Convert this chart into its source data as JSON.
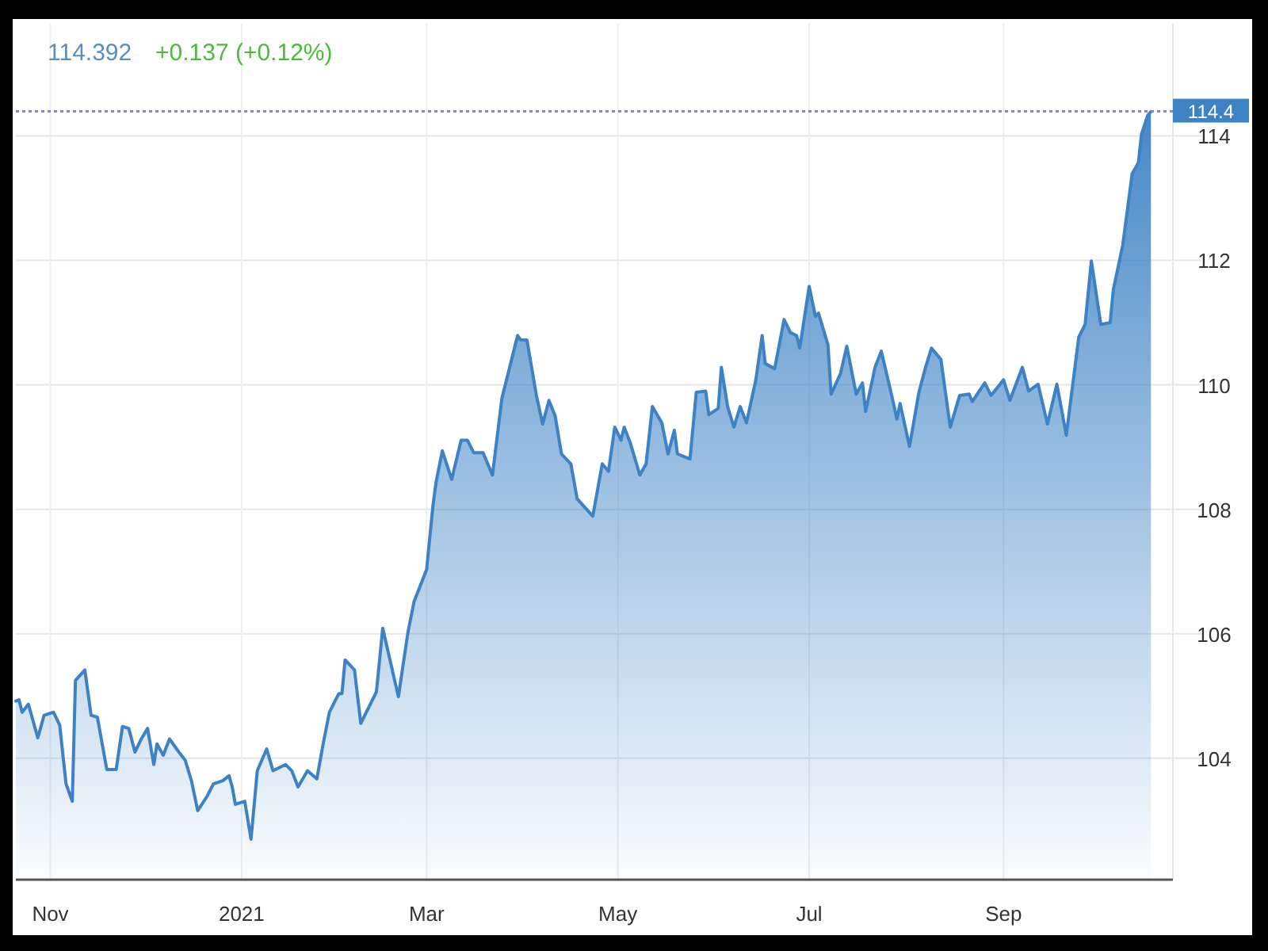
{
  "chart_data": {
    "type": "area",
    "title": "114.392",
    "subtitle": "+0.137 (+0.12%)",
    "x": [
      "2020-10-21",
      "2020-10-22",
      "2020-10-23",
      "2020-10-25",
      "2020-10-28",
      "2020-10-30",
      "2020-11-02",
      "2020-11-04",
      "2020-11-06",
      "2020-11-08",
      "2020-11-09",
      "2020-11-12",
      "2020-11-14",
      "2020-11-16",
      "2020-11-19",
      "2020-11-22",
      "2020-11-24",
      "2020-11-26",
      "2020-11-28",
      "2020-11-30",
      "2020-12-02",
      "2020-12-04",
      "2020-12-05",
      "2020-12-07",
      "2020-12-09",
      "2020-12-12",
      "2020-12-14",
      "2020-12-16",
      "2020-12-18",
      "2020-12-21",
      "2020-12-23",
      "2020-12-26",
      "2020-12-28",
      "2020-12-29",
      "2020-12-30",
      "2021-01-02",
      "2021-01-04",
      "2021-01-06",
      "2021-01-09",
      "2021-01-11",
      "2021-01-15",
      "2021-01-17",
      "2021-01-19",
      "2021-01-22",
      "2021-01-25",
      "2021-01-27",
      "2021-01-29",
      "2021-02-01",
      "2021-02-02",
      "2021-02-03",
      "2021-02-06",
      "2021-02-08",
      "2021-02-13",
      "2021-02-15",
      "2021-02-20",
      "2021-02-23",
      "2021-02-25",
      "2021-03-01",
      "2021-03-03",
      "2021-03-04",
      "2021-03-06",
      "2021-03-09",
      "2021-03-12",
      "2021-03-14",
      "2021-03-16",
      "2021-03-19",
      "2021-03-22",
      "2021-03-25",
      "2021-03-30",
      "2021-03-31",
      "2021-04-02",
      "2021-04-05",
      "2021-04-07",
      "2021-04-09",
      "2021-04-11",
      "2021-04-13",
      "2021-04-16",
      "2021-04-18",
      "2021-04-23",
      "2021-04-26",
      "2021-04-28",
      "2021-04-30",
      "2021-05-02",
      "2021-05-03",
      "2021-05-05",
      "2021-05-08",
      "2021-05-10",
      "2021-05-12",
      "2021-05-15",
      "2021-05-17",
      "2021-05-19",
      "2021-05-20",
      "2021-05-24",
      "2021-05-26",
      "2021-05-29",
      "2021-05-30",
      "2021-06-02",
      "2021-06-03",
      "2021-06-05",
      "2021-06-07",
      "2021-06-09",
      "2021-06-11",
      "2021-06-14",
      "2021-06-16",
      "2021-06-17",
      "2021-06-20",
      "2021-06-23",
      "2021-06-25",
      "2021-06-27",
      "2021-06-28",
      "2021-07-01",
      "2021-07-03",
      "2021-07-04",
      "2021-07-07",
      "2021-07-08",
      "2021-07-11",
      "2021-07-13",
      "2021-07-16",
      "2021-07-18",
      "2021-07-19",
      "2021-07-22",
      "2021-07-24",
      "2021-07-27",
      "2021-07-29",
      "2021-07-30",
      "2021-08-02",
      "2021-08-05",
      "2021-08-07",
      "2021-08-09",
      "2021-08-12",
      "2021-08-15",
      "2021-08-18",
      "2021-08-21",
      "2021-08-22",
      "2021-08-26",
      "2021-08-28",
      "2021-09-01",
      "2021-09-03",
      "2021-09-07",
      "2021-09-09",
      "2021-09-12",
      "2021-09-15",
      "2021-09-18",
      "2021-09-21",
      "2021-09-25",
      "2021-09-27",
      "2021-09-29",
      "2021-10-02",
      "2021-10-05",
      "2021-10-06",
      "2021-10-09",
      "2021-10-12",
      "2021-10-14",
      "2021-10-15",
      "2021-10-17",
      "2021-10-18"
    ],
    "series": [
      {
        "color": "#3d82c4",
        "values": [
          104.92,
          104.94,
          104.74,
          104.87,
          104.33,
          104.69,
          104.74,
          104.53,
          103.59,
          103.31,
          105.25,
          105.42,
          104.69,
          104.66,
          103.82,
          103.82,
          104.51,
          104.48,
          104.1,
          104.31,
          104.48,
          103.9,
          104.23,
          104.05,
          104.31,
          104.1,
          103.97,
          103.64,
          103.16,
          103.39,
          103.59,
          103.64,
          103.72,
          103.54,
          103.26,
          103.31,
          102.7,
          103.8,
          104.15,
          103.8,
          103.9,
          103.8,
          103.54,
          103.8,
          103.67,
          104.23,
          104.74,
          105.04,
          105.04,
          105.58,
          105.42,
          104.56,
          105.07,
          106.09,
          104.99,
          106.01,
          106.52,
          107.03,
          108.05,
          108.43,
          108.94,
          108.48,
          109.11,
          109.11,
          108.91,
          108.91,
          108.55,
          109.78,
          110.79,
          110.72,
          110.72,
          109.83,
          109.37,
          109.75,
          109.5,
          108.89,
          108.73,
          108.17,
          107.89,
          108.73,
          108.61,
          109.32,
          109.11,
          109.32,
          109.06,
          108.55,
          108.73,
          109.65,
          109.39,
          108.89,
          109.27,
          108.89,
          108.81,
          109.88,
          109.9,
          109.52,
          109.62,
          110.28,
          109.65,
          109.32,
          109.65,
          109.39,
          110.08,
          110.79,
          110.34,
          110.26,
          111.05,
          110.84,
          110.79,
          110.59,
          111.58,
          111.1,
          111.15,
          110.64,
          109.85,
          110.18,
          110.62,
          109.85,
          110.03,
          109.57,
          110.28,
          110.54,
          109.9,
          109.45,
          109.7,
          109.01,
          109.88,
          110.26,
          110.59,
          110.41,
          109.32,
          109.83,
          109.85,
          109.73,
          110.03,
          109.83,
          110.08,
          109.75,
          110.28,
          109.9,
          110.01,
          109.37,
          110.01,
          109.19,
          110.77,
          110.97,
          111.99,
          110.97,
          111,
          111.53,
          112.24,
          113.39,
          113.57,
          114.03,
          114.33,
          114.39
        ]
      }
    ],
    "xlim": [
      "2020-10-21",
      "2021-10-25"
    ],
    "xticks": [
      {
        "value": "2020-11-01",
        "label": "Nov"
      },
      {
        "value": "2021-01-01",
        "label": "2021"
      },
      {
        "value": "2021-03-01",
        "label": "Mar"
      },
      {
        "value": "2021-05-01",
        "label": "May"
      },
      {
        "value": "2021-07-01",
        "label": "Jul"
      },
      {
        "value": "2021-09-01",
        "label": "Sep"
      }
    ],
    "ylim": [
      102.05,
      115.8
    ],
    "yticks": [
      104,
      106,
      108,
      110,
      112,
      114
    ],
    "grid": true,
    "ref_lines": [
      {
        "axis": "y",
        "value": 114.392,
        "label": "114.4",
        "color": "#8080f0",
        "line_style": "dotted"
      }
    ]
  }
}
